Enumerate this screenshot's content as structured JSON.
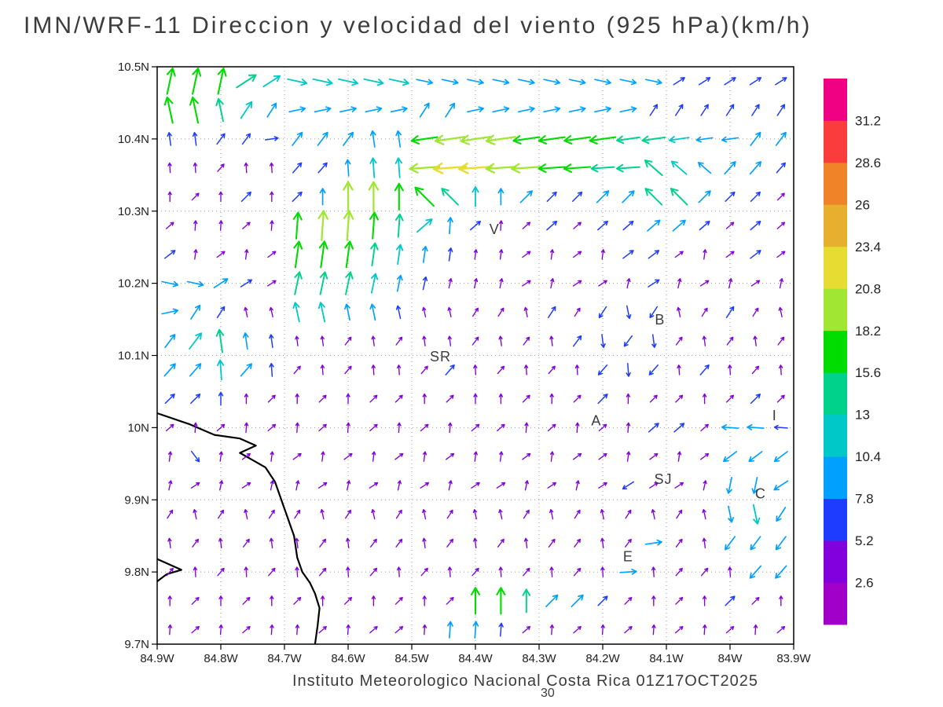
{
  "title": "IMN/WRF-11 Direccion y velocidad del viento (925 hPa)(km/h)",
  "footer": "Instituto Meteorologico Nacional Costa Rica 01Z17OCT2025",
  "footnote": "30",
  "chart_data": {
    "type": "quiver",
    "title": "IMN/WRF-11 Direccion y velocidad del viento (925 hPa)(km/h)",
    "units": "km/h",
    "level": "925 hPa",
    "model_valid": "01Z17OCT2025",
    "xlabel": "",
    "ylabel": "",
    "grid_on": true,
    "x_axis": {
      "range_degW": [
        84.9,
        83.9
      ],
      "ticks": [
        "84.9W",
        "84.8W",
        "84.7W",
        "84.6W",
        "84.5W",
        "84.4W",
        "84.3W",
        "84.2W",
        "84.1W",
        "84W",
        "83.9W"
      ]
    },
    "y_axis": {
      "range_degN": [
        9.7,
        10.5
      ],
      "ticks": [
        "10.5N",
        "10.4N",
        "10.3N",
        "10.2N",
        "10.1N",
        "10N",
        "9.9N",
        "9.8N",
        "9.7N"
      ]
    },
    "colorbar": {
      "position": "right",
      "bin_size_kmh": 2.6,
      "values": [
        "2.6",
        "5.2",
        "7.8",
        "10.4",
        "13",
        "15.6",
        "18.2",
        "20.8",
        "23.4",
        "26",
        "28.6",
        "31.2"
      ],
      "colors": [
        "#a000c8",
        "#8200dc",
        "#1e3cff",
        "#00a0ff",
        "#00c8c8",
        "#00d28c",
        "#00dc00",
        "#a0e632",
        "#e6dc32",
        "#e6af2d",
        "#f08228",
        "#fa3c3c",
        "#f00082"
      ]
    },
    "grid": {
      "rows": 20,
      "cols": 25,
      "lat_start": 10.48,
      "lat_step": -0.04,
      "lon_start_degW": 84.88,
      "lon_step_degW": -0.04,
      "dir_codes": "0=E,1=NE,2=N,3=NW,4=W,5=SW,6=S,7=SE (direction arrow points toward)",
      "speed_class": "second digit c: speed band = c*2.6 .. (c+1)*2.6 km/h, color = colorbar.colors[c]"
    },
    "vectors_encoded": [
      "26262615140404040404030303030303030303031212121212",
      "26262514130303030303131303030303030303121212121212",
      "22221212021313132323464747474646464645454443431313",
      "21211121211212232424474848474746464545353433131312",
      "21112112211223272726363524231312121313353513121211",
      "11212111212627272625142312211112111212131312111211",
      "12211121112626262524232221211121112112121121111211",
      "03031312112525252423222121211121111121122111211121",
      "03131221212424232322212111112112115262522111121121",
      "13142523222121112111212111211121126252621121112111",
      "13132413221121112121111221112111215262522112211121",
      "12122221112111211111211121211121111221111121111211",
      "11211121112111211121112111112111211121121211434342",
      "21722111211121112111211121211121111121112111535353",
      "21112111212111211121112111112111211152111121636353",
      "11211121111121112111211121211121112111211121636453",
      "21112111212111211111211121112111112111031121535353",
      "11211121112111211121112111211121112103211111215353",
      "21112111211121112111211126262513131211211121121121",
      "21112111212111211111212323221121112111211121112111"
    ],
    "stations": [
      {
        "label": "V",
        "lonW": 84.37,
        "latN": 10.268
      },
      {
        "label": "SR",
        "lonW": 84.455,
        "latN": 10.092
      },
      {
        "label": "B",
        "lonW": 84.11,
        "latN": 10.143
      },
      {
        "label": "A",
        "lonW": 84.21,
        "latN": 10.003
      },
      {
        "label": "SJ",
        "lonW": 84.105,
        "latN": 9.922
      },
      {
        "label": "C",
        "lonW": 83.952,
        "latN": 9.902
      },
      {
        "label": "E",
        "lonW": 84.16,
        "latN": 9.815
      },
      {
        "label": "I",
        "lonW": 83.93,
        "latN": 10.01
      }
    ],
    "coastlines": [
      [
        [
          84.9,
          10.02
        ],
        [
          84.85,
          10.005
        ],
        [
          84.81,
          9.99
        ],
        [
          84.77,
          9.985
        ],
        [
          84.745,
          9.975
        ],
        [
          84.77,
          9.965
        ],
        [
          84.75,
          9.955
        ],
        [
          84.73,
          9.945
        ],
        [
          84.715,
          9.925
        ],
        [
          84.705,
          9.9
        ],
        [
          84.695,
          9.875
        ],
        [
          84.685,
          9.85
        ],
        [
          84.68,
          9.82
        ],
        [
          84.672,
          9.8
        ],
        [
          84.66,
          9.785
        ],
        [
          84.652,
          9.77
        ],
        [
          84.645,
          9.75
        ],
        [
          84.648,
          9.725
        ],
        [
          84.652,
          9.7
        ]
      ],
      [
        [
          84.9,
          9.818
        ],
        [
          84.862,
          9.803
        ],
        [
          84.885,
          9.797
        ],
        [
          84.9,
          9.787
        ]
      ]
    ]
  }
}
